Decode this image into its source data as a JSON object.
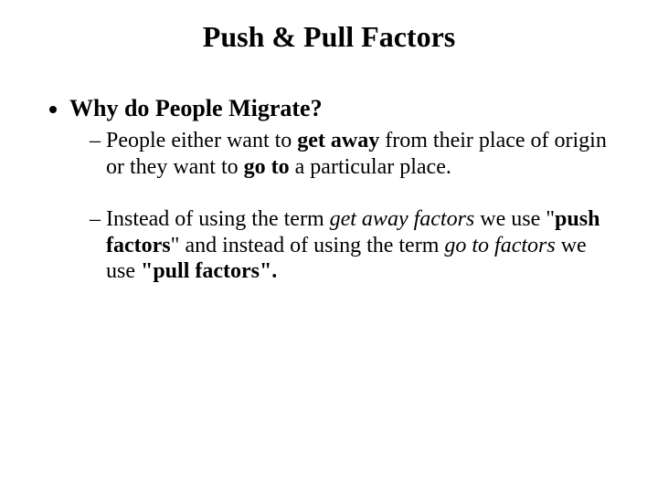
{
  "slide": {
    "title": "Push & Pull Factors",
    "bullet1": {
      "heading": "Why do People Migrate?",
      "sub1": {
        "t1": "People either want to ",
        "b1": "get away",
        "t2": " from their place of origin or they want to ",
        "b2": "go to",
        "t3": " a particular place."
      },
      "sub2": {
        "t1": " Instead of using the term ",
        "i1": "get away factors",
        "t2": " we use \"",
        "b1": "push factors",
        "t3": "\" and instead of using the term ",
        "i2": "go to factors ",
        "t4": "we use ",
        "b2": "\"pull factors\"."
      }
    }
  },
  "style": {
    "background_color": "#ffffff",
    "text_color": "#000000",
    "font_family": "Times New Roman",
    "title_fontsize": 32,
    "heading_fontsize": 26,
    "body_fontsize": 24
  }
}
